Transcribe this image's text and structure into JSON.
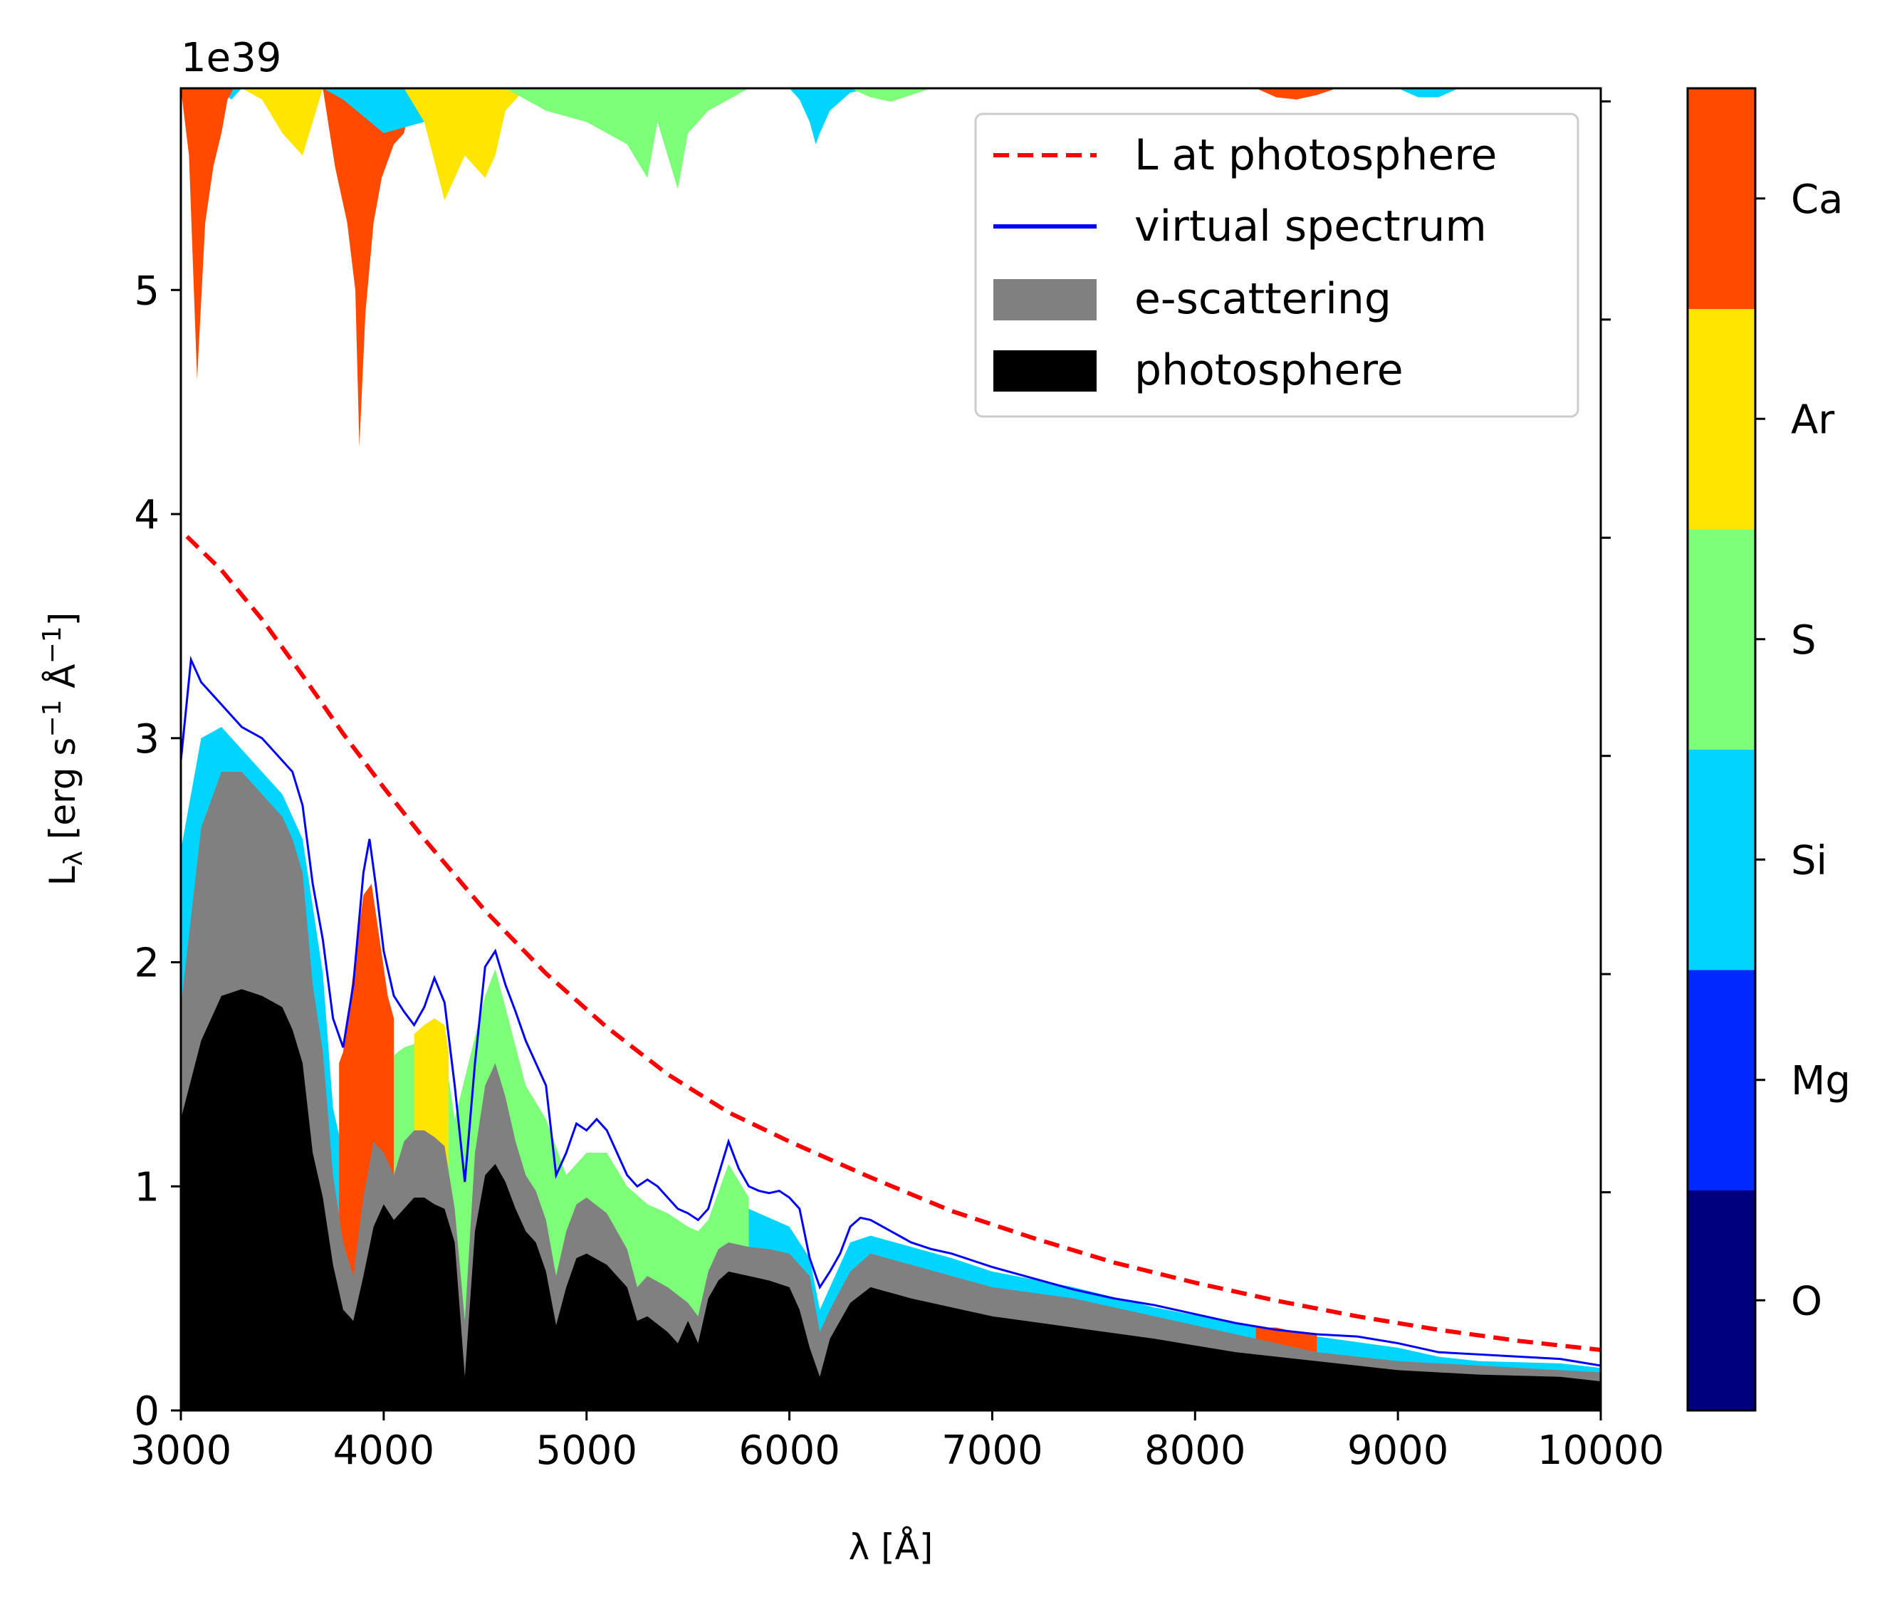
{
  "chart_data": {
    "type": "area",
    "title": "",
    "xlabel": "λ [Å]",
    "ylabel": "L_λ [erg s⁻¹ Å⁻¹]",
    "ylabel_parts": {
      "main": "L",
      "sub": "λ",
      "units_open": " [erg s",
      "exp1": "−1",
      "units_mid": " Å",
      "exp2": "−1",
      "units_close": "]"
    },
    "y_scale_label": "1e39",
    "xlim": [
      3000,
      10000
    ],
    "ylim": [
      0,
      5.9
    ],
    "y_scale": 1e+39,
    "xticks": [
      "3000",
      "4000",
      "5000",
      "6000",
      "7000",
      "8000",
      "9000",
      "10000"
    ],
    "yticks": [
      "0",
      "1",
      "2",
      "3",
      "4",
      "5"
    ],
    "legend": {
      "position": "upper right",
      "entries": [
        {
          "label": "L at photosphere",
          "style": "dashed-line",
          "color": "#ff0000"
        },
        {
          "label": "virtual spectrum",
          "style": "line",
          "color": "#0000ff"
        },
        {
          "label": "e-scattering",
          "style": "patch",
          "color": "#808080"
        },
        {
          "label": "photosphere",
          "style": "patch",
          "color": "#000000"
        }
      ]
    },
    "colorbar": {
      "colormap": "jet",
      "labels": [
        "O",
        "Mg",
        "Si",
        "S",
        "Ar",
        "Ca"
      ],
      "colors": [
        "#00007f",
        "#0028ff",
        "#00d4ff",
        "#7dff7a",
        "#ffe500",
        "#ff4a00"
      ]
    },
    "series": [
      {
        "name": "L at photosphere",
        "style": "dashed",
        "color": "#ff0000",
        "x": [
          3030,
          3200,
          3400,
          3600,
          3800,
          4000,
          4200,
          4500,
          4800,
          5100,
          5400,
          5700,
          6000,
          6400,
          6800,
          7200,
          7600,
          8000,
          8400,
          8800,
          9200,
          9600,
          10000
        ],
        "y": [
          3.9,
          3.75,
          3.53,
          3.28,
          3.02,
          2.78,
          2.55,
          2.23,
          1.95,
          1.71,
          1.5,
          1.33,
          1.2,
          1.04,
          0.89,
          0.77,
          0.66,
          0.57,
          0.49,
          0.42,
          0.36,
          0.31,
          0.27
        ]
      },
      {
        "name": "virtual spectrum",
        "style": "line",
        "color": "#0000ff",
        "x": [
          3000,
          3050,
          3100,
          3150,
          3200,
          3300,
          3400,
          3500,
          3550,
          3600,
          3650,
          3700,
          3750,
          3800,
          3850,
          3900,
          3930,
          3960,
          4000,
          4050,
          4100,
          4150,
          4200,
          4250,
          4300,
          4350,
          4400,
          4450,
          4500,
          4550,
          4600,
          4650,
          4700,
          4750,
          4800,
          4850,
          4900,
          4950,
          5000,
          5050,
          5100,
          5150,
          5200,
          5250,
          5300,
          5350,
          5400,
          5450,
          5500,
          5550,
          5600,
          5650,
          5700,
          5750,
          5800,
          5850,
          5900,
          5950,
          6000,
          6050,
          6100,
          6150,
          6200,
          6250,
          6300,
          6350,
          6400,
          6500,
          6600,
          6700,
          6800,
          6900,
          7000,
          7200,
          7400,
          7600,
          7800,
          8000,
          8200,
          8400,
          8600,
          8800,
          9000,
          9200,
          9400,
          9600,
          9800,
          10000
        ],
        "y": [
          2.9,
          3.35,
          3.25,
          3.2,
          3.15,
          3.05,
          3.0,
          2.9,
          2.85,
          2.7,
          2.35,
          2.1,
          1.75,
          1.62,
          1.9,
          2.4,
          2.55,
          2.35,
          2.05,
          1.85,
          1.78,
          1.72,
          1.8,
          1.93,
          1.82,
          1.45,
          1.02,
          1.55,
          1.98,
          2.05,
          1.9,
          1.78,
          1.65,
          1.55,
          1.45,
          1.05,
          1.15,
          1.28,
          1.25,
          1.3,
          1.25,
          1.15,
          1.05,
          1.0,
          1.03,
          1.0,
          0.95,
          0.9,
          0.88,
          0.85,
          0.9,
          1.05,
          1.2,
          1.08,
          1.0,
          0.98,
          0.97,
          0.98,
          0.95,
          0.9,
          0.68,
          0.55,
          0.62,
          0.7,
          0.82,
          0.86,
          0.85,
          0.8,
          0.75,
          0.72,
          0.7,
          0.67,
          0.64,
          0.59,
          0.54,
          0.5,
          0.47,
          0.43,
          0.39,
          0.36,
          0.34,
          0.33,
          0.3,
          0.26,
          0.25,
          0.24,
          0.23,
          0.2
        ]
      },
      {
        "name": "e-scattering",
        "style": "fill",
        "color": "#808080",
        "x": [
          3000,
          3100,
          3200,
          3300,
          3400,
          3500,
          3550,
          3600,
          3650,
          3700,
          3750,
          3800,
          3850,
          3900,
          3950,
          4000,
          4050,
          4100,
          4150,
          4200,
          4250,
          4300,
          4350,
          4400,
          4450,
          4500,
          4550,
          4600,
          4650,
          4700,
          4750,
          4800,
          4850,
          4900,
          4950,
          5000,
          5100,
          5200,
          5250,
          5300,
          5400,
          5500,
          5550,
          5600,
          5650,
          5700,
          5800,
          5900,
          6000,
          6100,
          6150,
          6200,
          6300,
          6400,
          6600,
          6800,
          7000,
          7400,
          7800,
          8200,
          8600,
          9000,
          9400,
          9800,
          10000
        ],
        "y": [
          1.8,
          2.6,
          2.85,
          2.85,
          2.75,
          2.65,
          2.55,
          2.4,
          1.9,
          1.6,
          1.05,
          0.75,
          0.6,
          0.95,
          1.2,
          1.15,
          1.05,
          1.2,
          1.25,
          1.25,
          1.22,
          1.18,
          0.9,
          0.4,
          1.15,
          1.45,
          1.55,
          1.4,
          1.2,
          1.05,
          0.98,
          0.85,
          0.6,
          0.8,
          0.92,
          0.95,
          0.88,
          0.72,
          0.55,
          0.6,
          0.55,
          0.48,
          0.42,
          0.62,
          0.72,
          0.75,
          0.73,
          0.72,
          0.7,
          0.6,
          0.35,
          0.45,
          0.62,
          0.7,
          0.65,
          0.6,
          0.55,
          0.5,
          0.42,
          0.34,
          0.26,
          0.22,
          0.2,
          0.18,
          0.17
        ]
      },
      {
        "name": "photosphere",
        "style": "fill",
        "color": "#000000",
        "x": [
          3000,
          3100,
          3200,
          3300,
          3400,
          3500,
          3550,
          3600,
          3650,
          3700,
          3750,
          3800,
          3850,
          3900,
          3950,
          4000,
          4050,
          4100,
          4150,
          4200,
          4250,
          4300,
          4350,
          4400,
          4450,
          4500,
          4550,
          4600,
          4650,
          4700,
          4750,
          4800,
          4850,
          4900,
          4950,
          5000,
          5100,
          5200,
          5250,
          5300,
          5400,
          5450,
          5500,
          5550,
          5600,
          5650,
          5700,
          5800,
          5900,
          6000,
          6050,
          6100,
          6150,
          6200,
          6300,
          6400,
          6600,
          6800,
          7000,
          7400,
          7800,
          8200,
          8600,
          9000,
          9400,
          9800,
          10000
        ],
        "y": [
          1.3,
          1.65,
          1.85,
          1.88,
          1.85,
          1.8,
          1.7,
          1.55,
          1.15,
          0.95,
          0.65,
          0.45,
          0.4,
          0.6,
          0.82,
          0.92,
          0.85,
          0.9,
          0.95,
          0.95,
          0.92,
          0.9,
          0.75,
          0.15,
          0.8,
          1.05,
          1.1,
          1.02,
          0.9,
          0.8,
          0.75,
          0.62,
          0.38,
          0.55,
          0.68,
          0.7,
          0.65,
          0.55,
          0.4,
          0.42,
          0.35,
          0.3,
          0.4,
          0.3,
          0.5,
          0.58,
          0.62,
          0.6,
          0.58,
          0.55,
          0.45,
          0.28,
          0.15,
          0.32,
          0.48,
          0.55,
          0.5,
          0.46,
          0.42,
          0.37,
          0.32,
          0.26,
          0.22,
          0.18,
          0.16,
          0.15,
          0.13
        ]
      }
    ],
    "element_contributions": [
      {
        "element": "Si",
        "color": "#00d4ff",
        "x": [
          3000,
          3100,
          3200,
          3300,
          3400,
          3500,
          3600,
          3700,
          3750,
          3800,
          3850,
          3900,
          4000,
          4100,
          4200,
          4300,
          4350,
          4400,
          4450,
          4500,
          4550,
          4600,
          4700,
          4800,
          4850,
          4900,
          5000,
          5100,
          5200,
          5400,
          5600,
          5700,
          5800,
          6000,
          6100,
          6150,
          6200,
          6300,
          6400,
          6600,
          6800,
          7000,
          7400,
          7800,
          8200,
          8600,
          9000,
          9200,
          9400,
          9800,
          10000
        ],
        "y": [
          2.5,
          3.0,
          3.05,
          2.95,
          2.85,
          2.75,
          2.55,
          1.95,
          1.35,
          1.15,
          0.9,
          1.6,
          1.5,
          1.55,
          1.5,
          1.45,
          1.25,
          0.7,
          1.3,
          1.8,
          1.92,
          1.75,
          1.35,
          1.25,
          0.85,
          0.95,
          1.05,
          1.0,
          0.8,
          0.6,
          0.8,
          1.05,
          0.9,
          0.82,
          0.68,
          0.45,
          0.55,
          0.75,
          0.78,
          0.73,
          0.68,
          0.62,
          0.55,
          0.46,
          0.39,
          0.33,
          0.28,
          0.24,
          0.22,
          0.21,
          0.19
        ]
      },
      {
        "element": "S",
        "color": "#7dff7a",
        "x": [
          3950,
          4000,
          4100,
          4200,
          4300,
          4350,
          4500,
          4550,
          4600,
          4700,
          4800,
          4900,
          4950,
          5000,
          5100,
          5200,
          5300,
          5400,
          5500,
          5550,
          5600,
          5700,
          5800
        ],
        "y": [
          1.55,
          1.55,
          1.62,
          1.65,
          1.6,
          1.3,
          1.85,
          1.97,
          1.8,
          1.45,
          1.3,
          1.05,
          1.1,
          1.15,
          1.15,
          1.0,
          0.92,
          0.88,
          0.82,
          0.8,
          0.85,
          1.1,
          0.95
        ]
      },
      {
        "element": "Ar",
        "color": "#ffe500",
        "x": [
          4150,
          4200,
          4250,
          4300,
          4320
        ],
        "y": [
          1.68,
          1.72,
          1.75,
          1.72,
          1.6
        ]
      },
      {
        "element": "Ca",
        "color": "#ff4a00",
        "x": [
          3780,
          3800,
          3850,
          3900,
          3940,
          3980,
          4020,
          4050
        ],
        "y": [
          1.55,
          1.6,
          1.95,
          2.3,
          2.35,
          2.1,
          1.85,
          1.75
        ]
      },
      {
        "element": "Ca",
        "color": "#ff4a00",
        "x": [
          8300,
          8400,
          8500,
          8600
        ],
        "y": [
          0.37,
          0.37,
          0.35,
          0.34
        ]
      }
    ],
    "absorption_contributions": [
      {
        "element": "Si",
        "color": "#00d4ff",
        "x": [
          3000,
          3050,
          3100,
          3150,
          3200,
          3250,
          3300
        ],
        "y": [
          5.9,
          5.55,
          5.7,
          5.8,
          5.88,
          5.85,
          5.9
        ]
      },
      {
        "element": "Ca",
        "color": "#ff4a00",
        "x": [
          3000,
          3040,
          3080,
          3120,
          3160,
          3200,
          3230,
          3260
        ],
        "y": [
          5.9,
          5.6,
          4.6,
          5.3,
          5.55,
          5.7,
          5.85,
          5.9
        ]
      },
      {
        "element": "Ar",
        "color": "#ffe500",
        "x": [
          3300,
          3400,
          3500,
          3600,
          3650,
          3700
        ],
        "y": [
          5.9,
          5.85,
          5.7,
          5.6,
          5.75,
          5.9
        ]
      },
      {
        "element": "Ca",
        "color": "#ff4a00",
        "x": [
          3700,
          3760,
          3820,
          3860,
          3880,
          3910,
          3950,
          3990,
          4050,
          4100,
          4150
        ],
        "y": [
          5.9,
          5.55,
          5.3,
          5.0,
          4.3,
          4.9,
          5.3,
          5.5,
          5.65,
          5.7,
          5.9
        ]
      },
      {
        "element": "Si",
        "color": "#00d4ff",
        "x": [
          3700,
          3800,
          4000,
          4200,
          4300,
          4400
        ],
        "y": [
          5.9,
          5.85,
          5.7,
          5.75,
          5.85,
          5.9
        ]
      },
      {
        "element": "Ar",
        "color": "#ffe500",
        "x": [
          4100,
          4200,
          4300,
          4400,
          4500,
          4550,
          4600,
          4700
        ],
        "y": [
          5.9,
          5.75,
          5.4,
          5.6,
          5.5,
          5.6,
          5.8,
          5.9
        ]
      },
      {
        "element": "S",
        "color": "#7dff7a",
        "x": [
          4600,
          4800,
          5000,
          5200,
          5300,
          5350,
          5450,
          5500,
          5600,
          5700,
          5800
        ],
        "y": [
          5.9,
          5.8,
          5.75,
          5.65,
          5.5,
          5.75,
          5.45,
          5.7,
          5.8,
          5.85,
          5.9
        ]
      },
      {
        "element": "Si",
        "color": "#00d4ff",
        "x": [
          6000,
          6050,
          6100,
          6130,
          6150,
          6200,
          6300,
          6400
        ],
        "y": [
          5.9,
          5.85,
          5.75,
          5.65,
          5.7,
          5.8,
          5.88,
          5.9
        ]
      },
      {
        "element": "S",
        "color": "#7dff7a",
        "x": [
          6300,
          6400,
          6500,
          6600,
          6700
        ],
        "y": [
          5.9,
          5.86,
          5.84,
          5.87,
          5.9
        ]
      },
      {
        "element": "Ca",
        "color": "#ff4a00",
        "x": [
          8300,
          8400,
          8500,
          8600,
          8700
        ],
        "y": [
          5.9,
          5.86,
          5.85,
          5.87,
          5.9
        ]
      },
      {
        "element": "Si",
        "color": "#00d4ff",
        "x": [
          9000,
          9100,
          9200,
          9300
        ],
        "y": [
          5.9,
          5.86,
          5.86,
          5.9
        ]
      }
    ]
  }
}
